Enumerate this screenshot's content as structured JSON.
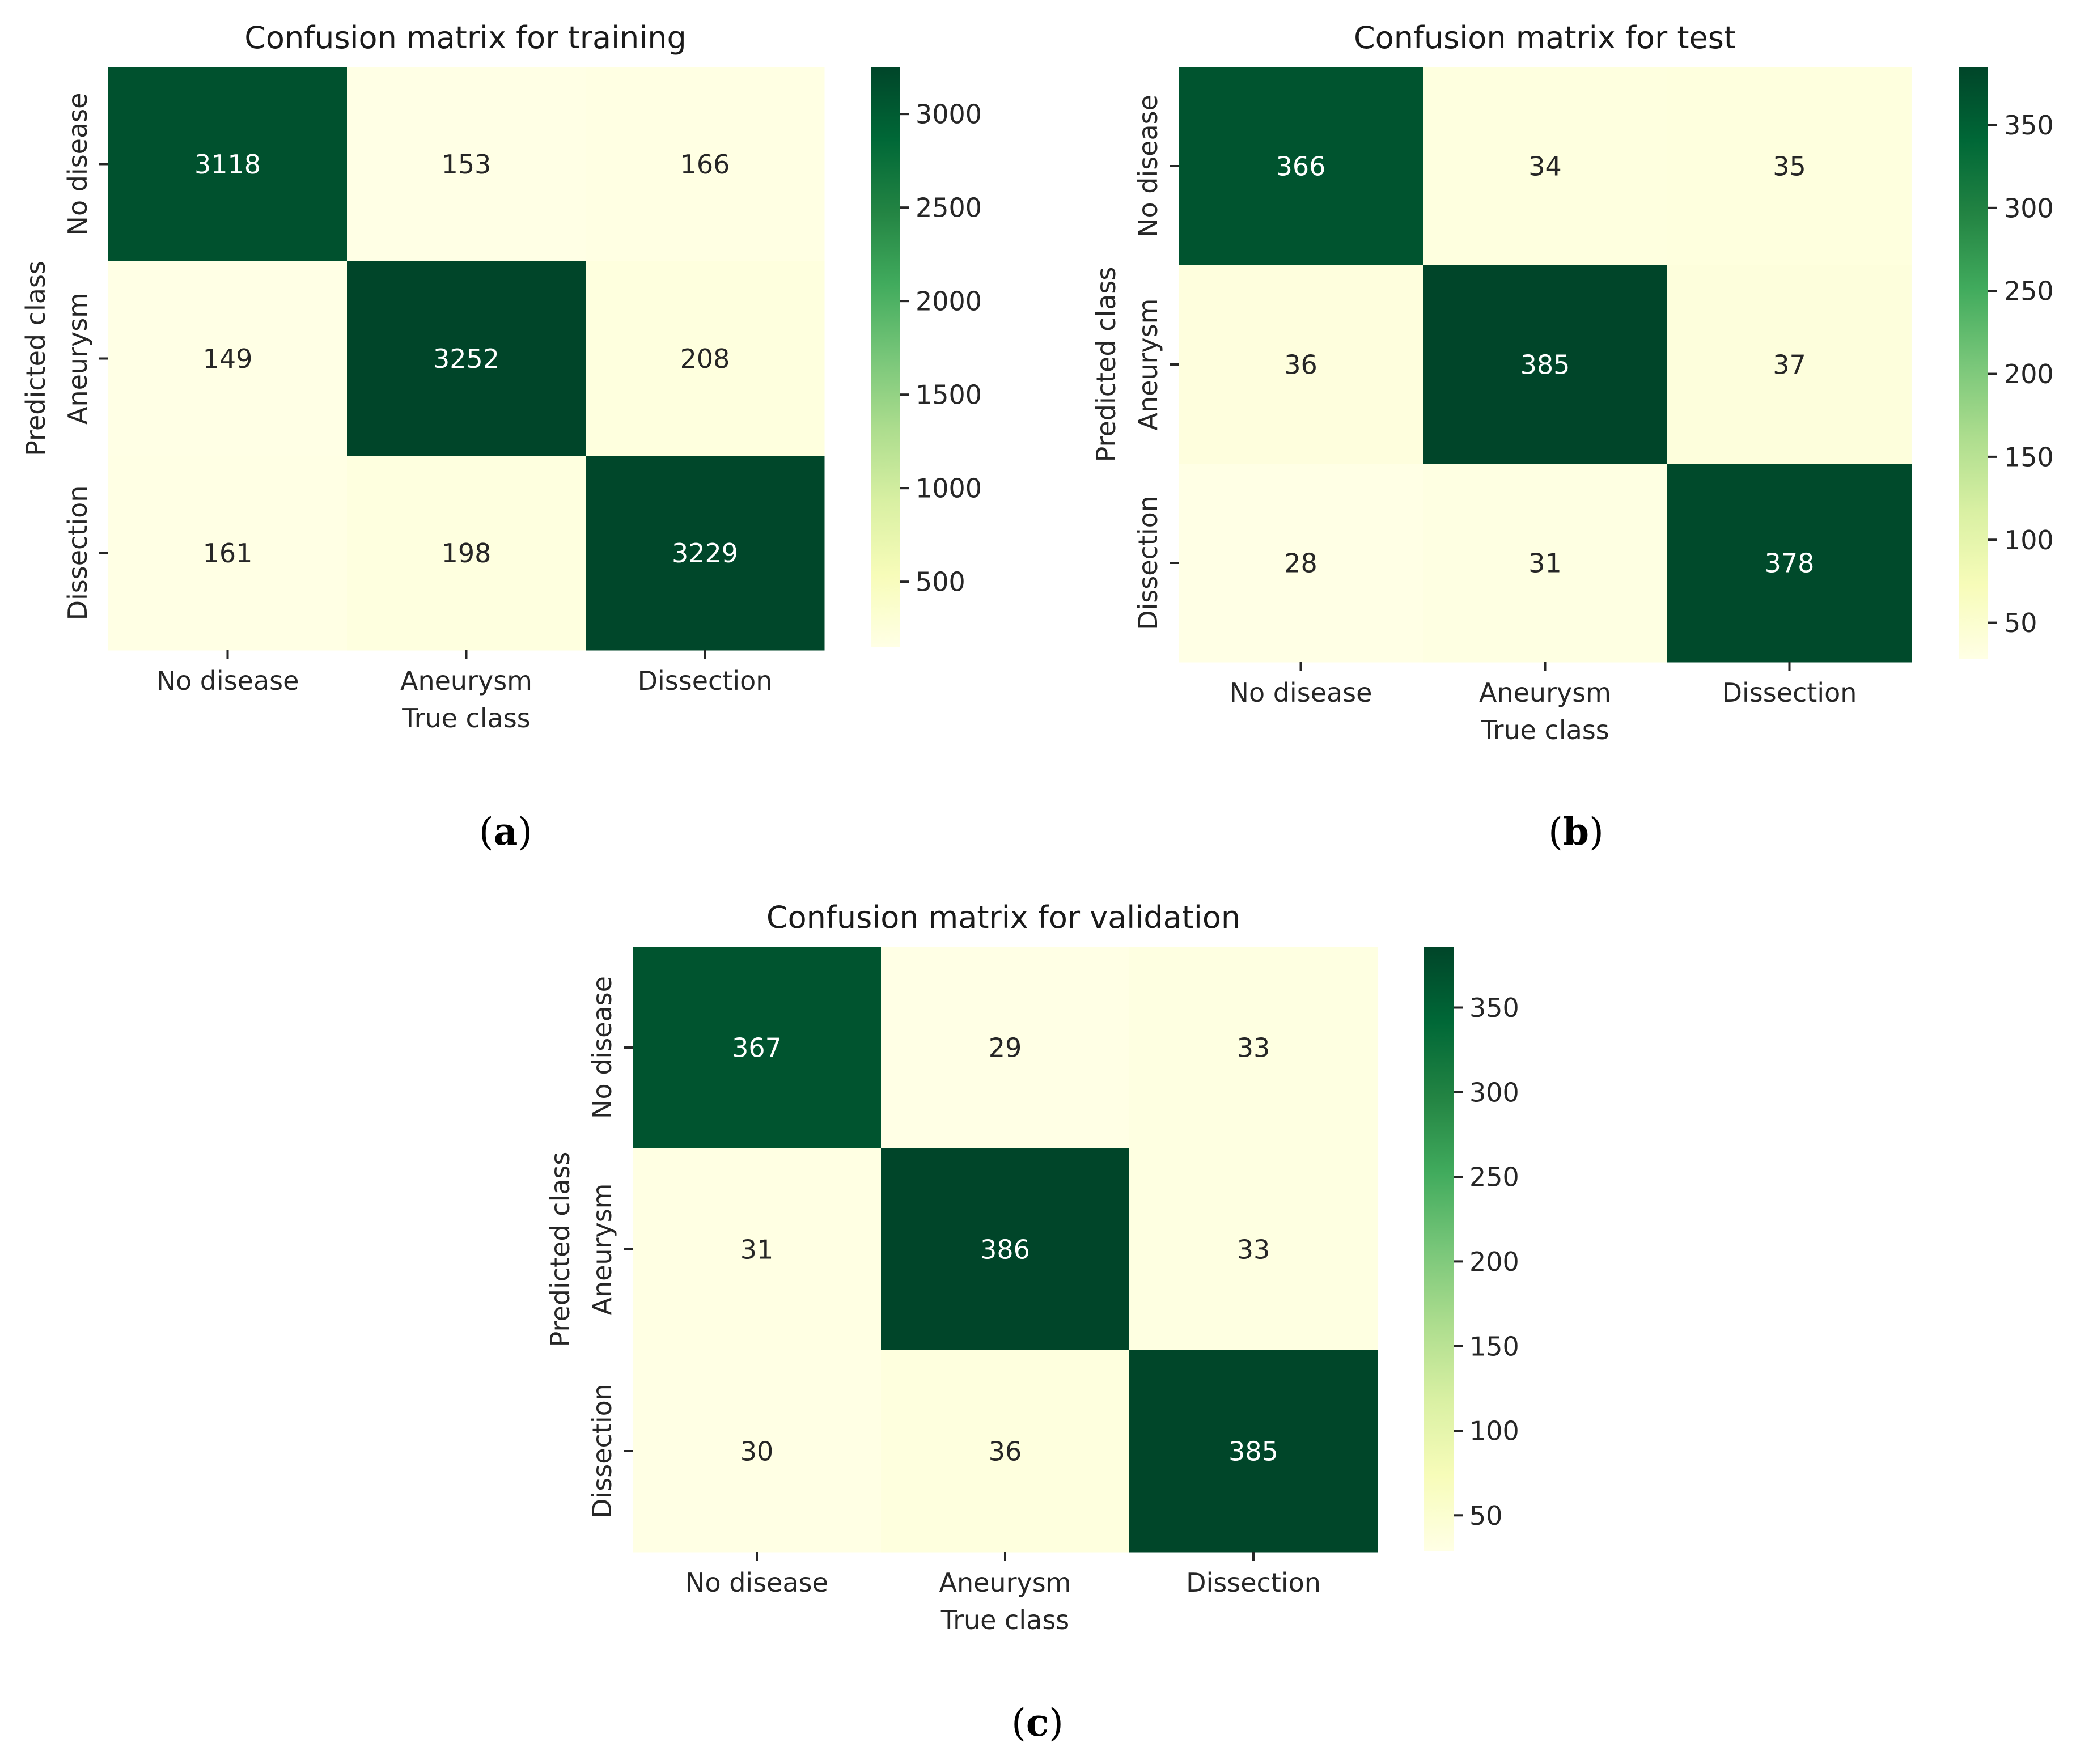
{
  "chart_data": [
    {
      "type": "heatmap",
      "title": "Confusion matrix for training",
      "xlabel": "True class",
      "ylabel": "Predicted class",
      "x_categories": [
        "No disease",
        "Aneurysm",
        "Dissection"
      ],
      "y_categories": [
        "No disease",
        "Aneurysm",
        "Dissection"
      ],
      "values": [
        [
          3118,
          153,
          166
        ],
        [
          149,
          3252,
          208
        ],
        [
          161,
          198,
          3229
        ]
      ],
      "colorbar": {
        "min": 149,
        "max": 3252,
        "ticks": [
          500,
          1000,
          1500,
          2000,
          2500,
          3000
        ],
        "colormap": "YlGn"
      },
      "panel_label": "a"
    },
    {
      "type": "heatmap",
      "title": "Confusion matrix for test",
      "xlabel": "True class",
      "ylabel": "Predicted class",
      "x_categories": [
        "No disease",
        "Aneurysm",
        "Dissection"
      ],
      "y_categories": [
        "No disease",
        "Aneurysm",
        "Dissection"
      ],
      "values": [
        [
          366,
          34,
          35
        ],
        [
          36,
          385,
          37
        ],
        [
          28,
          31,
          378
        ]
      ],
      "colorbar": {
        "min": 28,
        "max": 385,
        "ticks": [
          50,
          100,
          150,
          200,
          250,
          300,
          350
        ],
        "colormap": "YlGn"
      },
      "panel_label": "b"
    },
    {
      "type": "heatmap",
      "title": "Confusion matrix for validation",
      "xlabel": "True class",
      "ylabel": "Predicted class",
      "x_categories": [
        "No disease",
        "Aneurysm",
        "Dissection"
      ],
      "y_categories": [
        "No disease",
        "Aneurysm",
        "Dissection"
      ],
      "values": [
        [
          367,
          29,
          33
        ],
        [
          31,
          386,
          33
        ],
        [
          30,
          36,
          385
        ]
      ],
      "colorbar": {
        "min": 29,
        "max": 386,
        "ticks": [
          50,
          100,
          150,
          200,
          250,
          300,
          350
        ],
        "colormap": "YlGn"
      },
      "panel_label": "c"
    }
  ]
}
